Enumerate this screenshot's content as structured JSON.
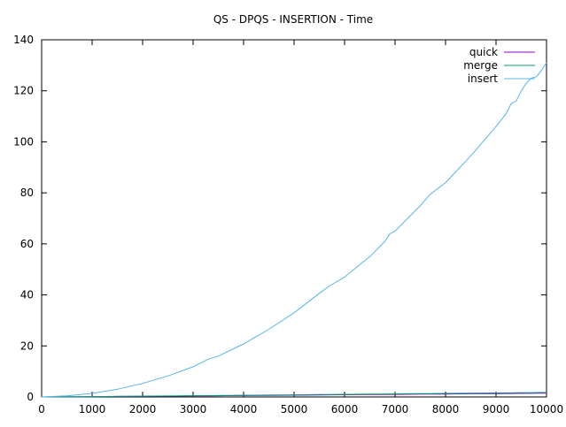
{
  "chart_data": {
    "type": "line",
    "title": "QS - DPQS - INSERTION - Time",
    "xlabel": "",
    "ylabel": "",
    "xlim": [
      0,
      10000
    ],
    "ylim": [
      0,
      140
    ],
    "x_ticks": [
      0,
      1000,
      2000,
      3000,
      4000,
      5000,
      6000,
      7000,
      8000,
      9000,
      10000
    ],
    "y_ticks": [
      0,
      20,
      40,
      60,
      80,
      100,
      120,
      140
    ],
    "grid": false,
    "legend_position": "top-right",
    "x": [
      0,
      500,
      1000,
      1500,
      2000,
      2500,
      3000,
      3300,
      3500,
      4000,
      4500,
      5000,
      5500,
      5700,
      6000,
      6500,
      6800,
      6900,
      7000,
      7500,
      7700,
      8000,
      8500,
      9000,
      9200,
      9300,
      9400,
      9500,
      9600,
      9700,
      9800,
      9900,
      10000
    ],
    "series": [
      {
        "name": "quick",
        "color": "#9400d3",
        "values": [
          0.0,
          0.05,
          0.12,
          0.18,
          0.25,
          0.32,
          0.4,
          0.44,
          0.47,
          0.55,
          0.62,
          0.7,
          0.78,
          0.82,
          0.86,
          0.94,
          0.98,
          1.0,
          1.02,
          1.1,
          1.12,
          1.16,
          1.24,
          1.32,
          1.35,
          1.36,
          1.38,
          1.4,
          1.41,
          1.43,
          1.44,
          1.45,
          1.48
        ]
      },
      {
        "name": "merge",
        "color": "#009e73",
        "values": [
          0.0,
          0.07,
          0.15,
          0.23,
          0.3,
          0.38,
          0.47,
          0.52,
          0.56,
          0.65,
          0.74,
          0.83,
          0.92,
          0.96,
          1.01,
          1.1,
          1.15,
          1.17,
          1.2,
          1.29,
          1.32,
          1.37,
          1.46,
          1.55,
          1.59,
          1.61,
          1.63,
          1.65,
          1.66,
          1.68,
          1.7,
          1.72,
          1.74
        ]
      },
      {
        "name": "insert",
        "color": "#56b4e9",
        "values": [
          0.0,
          0.4,
          1.4,
          3.0,
          5.3,
          8.2,
          11.8,
          14.8,
          16.0,
          20.8,
          26.5,
          33.0,
          40.6,
          43.5,
          47.0,
          55.0,
          61.0,
          64.0,
          65.0,
          75.0,
          79.5,
          84.0,
          94.5,
          106.0,
          111.0,
          115.0,
          116.0,
          120.0,
          123.0,
          125.0,
          125.5,
          128.0,
          131.0
        ]
      }
    ]
  }
}
